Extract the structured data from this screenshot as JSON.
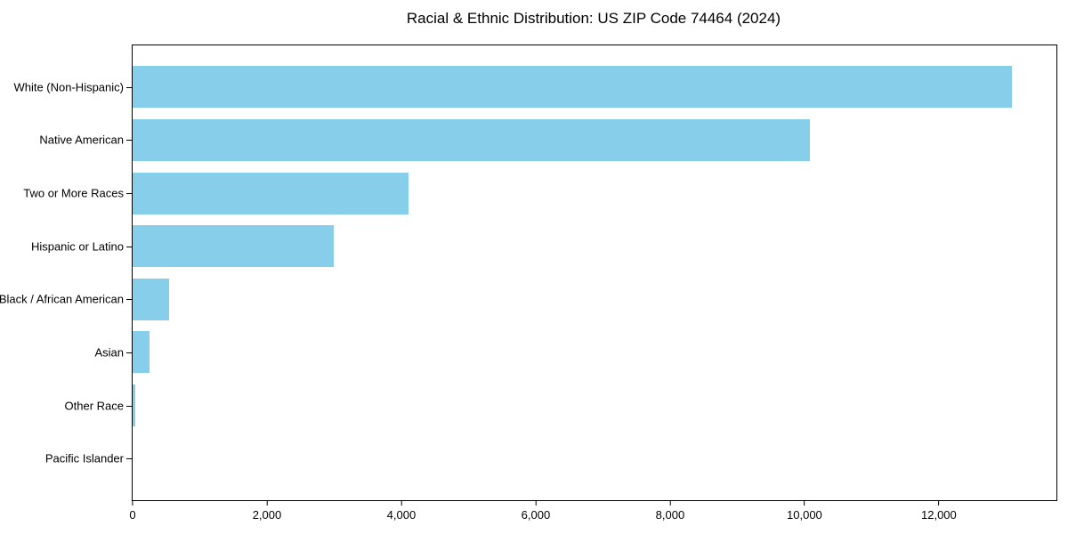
{
  "title": "Racial & Ethnic Distribution: US ZIP Code 74464 (2024)",
  "chart_data": {
    "type": "bar",
    "orientation": "horizontal",
    "title": "Racial & Ethnic Distribution: US ZIP Code 74464 (2024)",
    "xlabel": "",
    "ylabel": "",
    "categories": [
      "White (Non-Hispanic)",
      "Native American",
      "Two or More Races",
      "Hispanic or Latino",
      "Black / African American",
      "Asian",
      "Other Race",
      "Pacific Islander"
    ],
    "values": [
      13090,
      10080,
      4110,
      2990,
      545,
      250,
      45,
      0
    ],
    "x_ticks": [
      0,
      2000,
      4000,
      6000,
      8000,
      10000,
      12000
    ],
    "x_tick_labels": [
      "0",
      "2,000",
      "4,000",
      "6,000",
      "8,000",
      "10,000",
      "12,000"
    ],
    "xlim": [
      0,
      13750
    ],
    "grid": false,
    "legend": false,
    "bar_color": "#87CEEB",
    "axis_color": "#000000",
    "text_color": "#000000",
    "background_color": "#ffffff"
  }
}
